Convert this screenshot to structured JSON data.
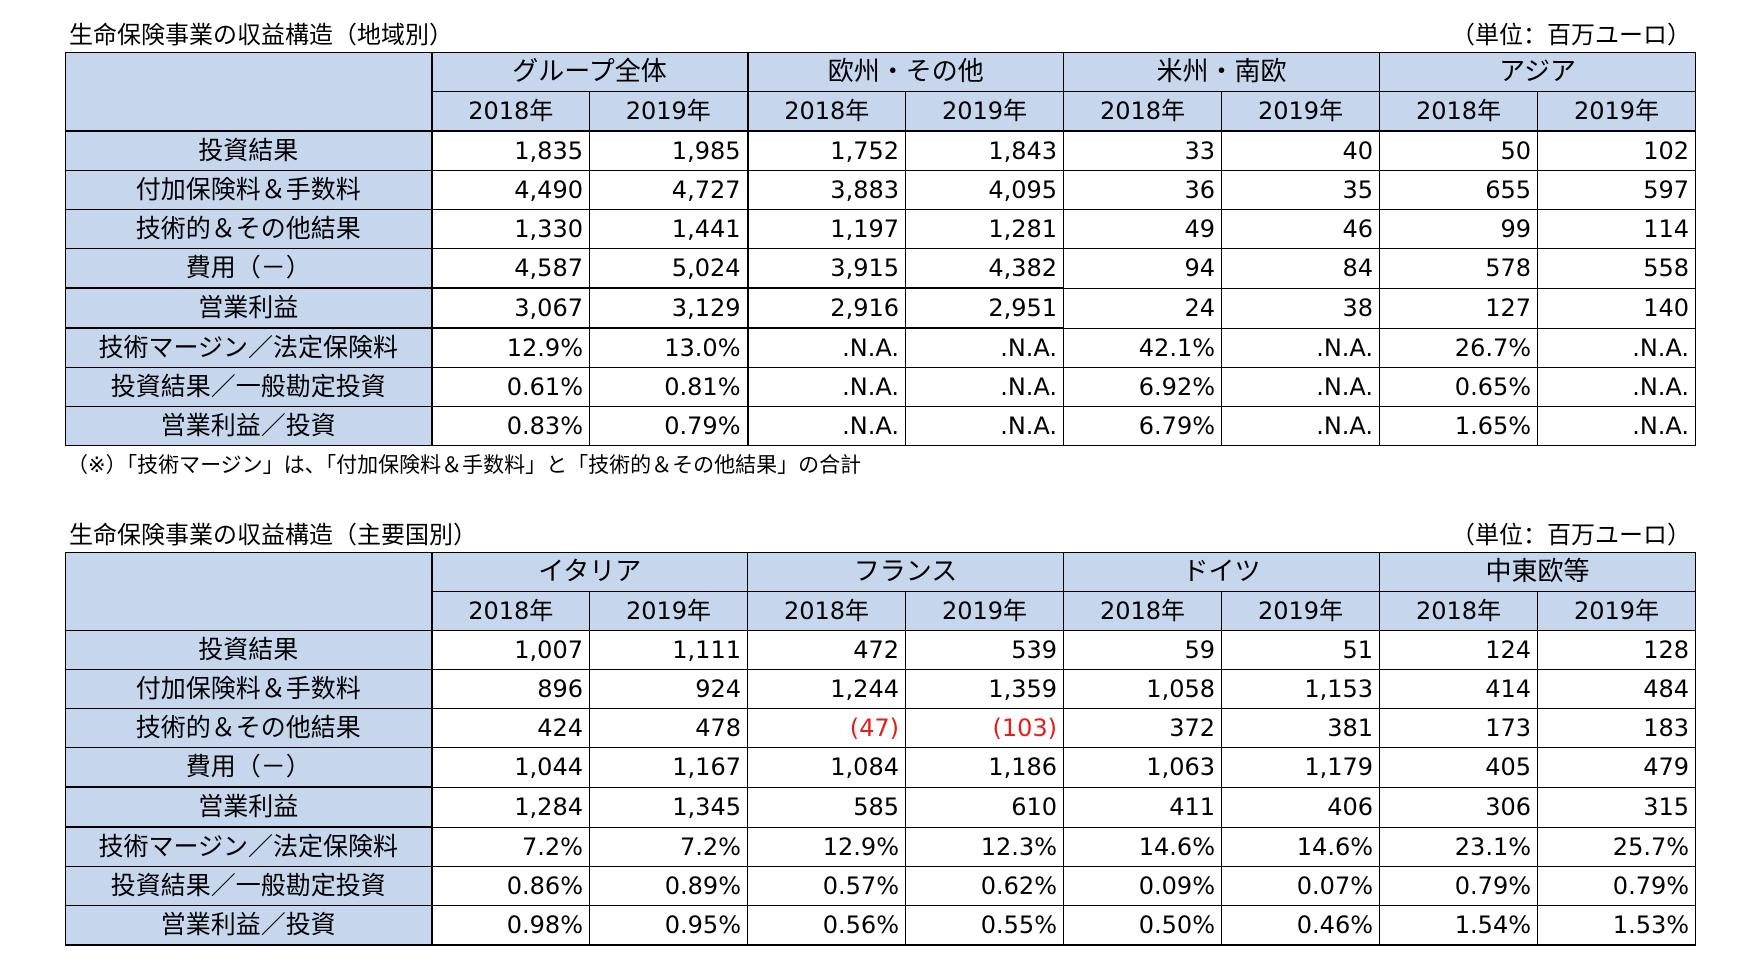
{
  "colors": {
    "header_bg": "#c6d6ec",
    "negative": "#e0201b",
    "border": "#000000"
  },
  "table1": {
    "title": "生命保険事業の収益構造（地域別）",
    "unit": "（単位：百万ユーロ）",
    "groups": [
      "グループ全体",
      "欧州・その他",
      "米州・南欧",
      "アジア"
    ],
    "years": [
      "2018年",
      "2019年",
      "2018年",
      "2019年",
      "2018年",
      "2019年",
      "2018年",
      "2019年"
    ],
    "rows": [
      {
        "label": "投資結果",
        "values": [
          "1,835",
          "1,985",
          "1,752",
          "1,843",
          "33",
          "40",
          "50",
          "102"
        ]
      },
      {
        "label": "付加保険料＆手数料",
        "values": [
          "4,490",
          "4,727",
          "3,883",
          "4,095",
          "36",
          "35",
          "655",
          "597"
        ]
      },
      {
        "label": "技術的＆その他結果",
        "values": [
          "1,330",
          "1,441",
          "1,197",
          "1,281",
          "49",
          "46",
          "99",
          "114"
        ]
      },
      {
        "label": "費用（－）",
        "values": [
          "4,587",
          "5,024",
          "3,915",
          "4,382",
          "94",
          "84",
          "578",
          "558"
        ]
      },
      {
        "label": "営業利益",
        "values": [
          "3,067",
          "3,129",
          "2,916",
          "2,951",
          "24",
          "38",
          "127",
          "140"
        ]
      },
      {
        "label": "技術マージン／法定保険料",
        "values": [
          "12.9%",
          "13.0%",
          ".N.A.",
          ".N.A.",
          "42.1%",
          ".N.A.",
          "26.7%",
          ".N.A."
        ]
      },
      {
        "label": "投資結果／一般勘定投資",
        "values": [
          "0.61%",
          "0.81%",
          ".N.A.",
          ".N.A.",
          "6.92%",
          ".N.A.",
          "0.65%",
          ".N.A."
        ]
      },
      {
        "label": "営業利益／投資",
        "values": [
          "0.83%",
          "0.79%",
          ".N.A.",
          ".N.A.",
          "6.79%",
          ".N.A.",
          "1.65%",
          ".N.A."
        ]
      }
    ],
    "note": "（※）「技術マージン」は、「付加保険料＆手数料」と「技術的＆その他結果」の合計"
  },
  "table2": {
    "title": "生命保険事業の収益構造（主要国別）",
    "unit": "（単位：百万ユーロ）",
    "groups": [
      "イタリア",
      "フランス",
      "ドイツ",
      "中東欧等"
    ],
    "years": [
      "2018年",
      "2019年",
      "2018年",
      "2019年",
      "2018年",
      "2019年",
      "2018年",
      "2019年"
    ],
    "rows": [
      {
        "label": "投資結果",
        "values": [
          "1,007",
          "1,111",
          "472",
          "539",
          "59",
          "51",
          "124",
          "128"
        ]
      },
      {
        "label": "付加保険料＆手数料",
        "values": [
          "896",
          "924",
          "1,244",
          "1,359",
          "1,058",
          "1,153",
          "414",
          "484"
        ]
      },
      {
        "label": "技術的＆その他結果",
        "values": [
          "424",
          "478",
          "(47)",
          "(103)",
          "372",
          "381",
          "173",
          "183"
        ]
      },
      {
        "label": "費用（－）",
        "values": [
          "1,044",
          "1,167",
          "1,084",
          "1,186",
          "1,063",
          "1,179",
          "405",
          "479"
        ]
      },
      {
        "label": "営業利益",
        "values": [
          "1,284",
          "1,345",
          "585",
          "610",
          "411",
          "406",
          "306",
          "315"
        ]
      },
      {
        "label": "技術マージン／法定保険料",
        "values": [
          "7.2%",
          "7.2%",
          "12.9%",
          "12.3%",
          "14.6%",
          "14.6%",
          "23.1%",
          "25.7%"
        ]
      },
      {
        "label": "投資結果／一般勘定投資",
        "values": [
          "0.86%",
          "0.89%",
          "0.57%",
          "0.62%",
          "0.09%",
          "0.07%",
          "0.79%",
          "0.79%"
        ]
      },
      {
        "label": "営業利益／投資",
        "values": [
          "0.98%",
          "0.95%",
          "0.56%",
          "0.55%",
          "0.50%",
          "0.46%",
          "1.54%",
          "1.53%"
        ]
      }
    ]
  }
}
